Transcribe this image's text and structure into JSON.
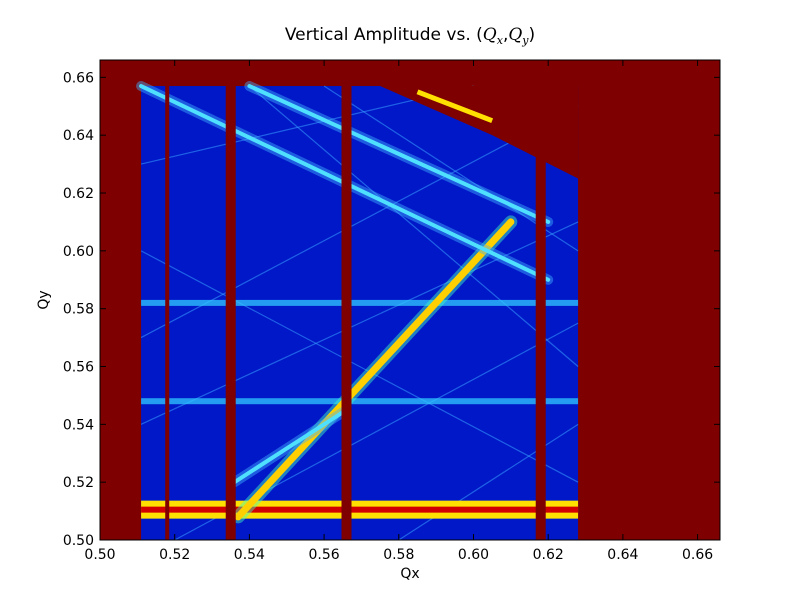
{
  "chart_data": {
    "type": "heatmap",
    "title": {
      "prefix": "Vertical Amplitude vs. (",
      "q1": "Q",
      "q1_sub": "x",
      "sep": ",",
      "q2": "Q",
      "q2_sub": "y",
      "suffix": ")"
    },
    "xlabel": "Qx",
    "ylabel": "Qy",
    "xlim": [
      0.5,
      0.666
    ],
    "ylim": [
      0.5,
      0.666
    ],
    "x_ticks": [
      "0.50",
      "0.52",
      "0.54",
      "0.56",
      "0.58",
      "0.60",
      "0.62",
      "0.64",
      "0.66"
    ],
    "y_ticks": [
      "0.50",
      "0.52",
      "0.54",
      "0.56",
      "0.58",
      "0.60",
      "0.62",
      "0.64",
      "0.66"
    ],
    "colormap": "jet",
    "background_color": "#7f0000",
    "data_region": {
      "x_range": [
        0.511,
        0.628
      ],
      "y_range": [
        0.5,
        0.657
      ]
    },
    "saturated_lines": {
      "vertical_qx": [
        0.518,
        0.535,
        0.566,
        0.618
      ],
      "horizontal_qy": [
        0.5105,
        0.548,
        0.582
      ],
      "diagonals": [
        {
          "from": [
            0.537,
            0.508
          ],
          "to": [
            0.61,
            0.61
          ]
        },
        {
          "from": [
            0.536,
            0.52
          ],
          "to": [
            0.566,
            0.545
          ]
        },
        {
          "from": [
            0.511,
            0.657
          ],
          "to": [
            0.62,
            0.59
          ]
        },
        {
          "from": [
            0.54,
            0.657
          ],
          "to": [
            0.62,
            0.61
          ]
        }
      ]
    }
  }
}
